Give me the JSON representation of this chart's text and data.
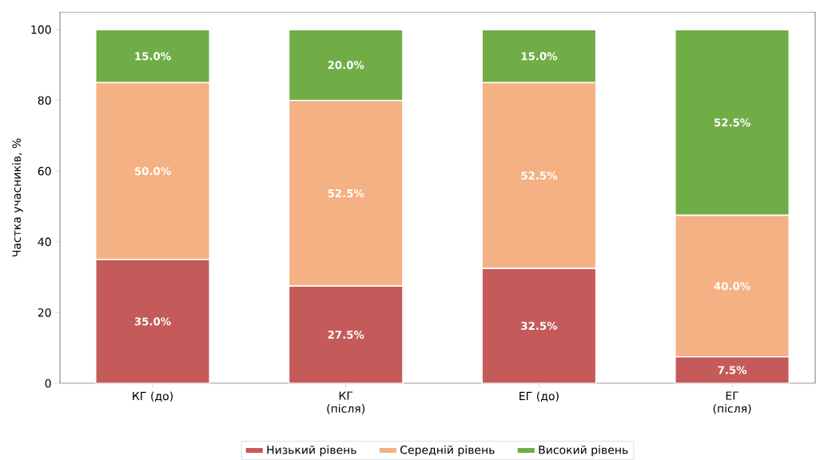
{
  "chart_data": {
    "type": "bar",
    "stacked": true,
    "ylabel": "Частка учасників, %",
    "categories": [
      "КГ (до)",
      "КГ (після)",
      "ЕГ (до)",
      "ЕГ (після)"
    ],
    "series": [
      {
        "name": "Низький рівень",
        "color": "#c55a5a",
        "values": [
          35.0,
          27.5,
          32.5,
          7.5
        ],
        "value_labels": [
          "35.0%",
          "27.5%",
          "32.5%",
          "7.5%"
        ]
      },
      {
        "name": "Середній рівень",
        "color": "#f4b183",
        "values": [
          50.0,
          52.5,
          52.5,
          40.0
        ],
        "value_labels": [
          "50.0%",
          "52.5%",
          "52.5%",
          "40.0%"
        ]
      },
      {
        "name": "Високий рівень",
        "color": "#70ad47",
        "values": [
          15.0,
          20.0,
          15.0,
          52.5
        ],
        "value_labels": [
          "15.0%",
          "20.0%",
          "15.0%",
          "52.5%"
        ]
      }
    ],
    "ylim": [
      0,
      105
    ],
    "yticks": [
      0,
      20,
      40,
      60,
      80,
      100
    ],
    "grid": false,
    "legend": "bottom"
  }
}
